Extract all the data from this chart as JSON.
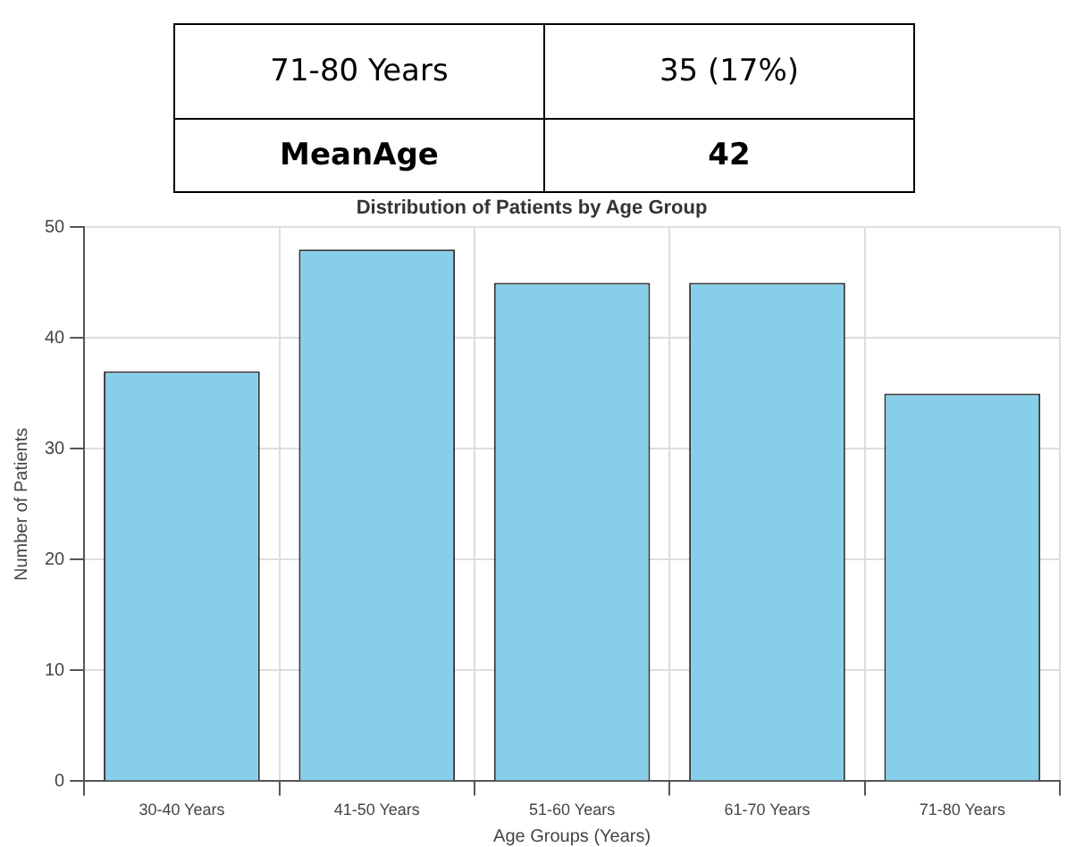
{
  "chart_data": {
    "type": "bar",
    "title": "Distribution of Patients by Age Group",
    "xlabel": "Age Groups (Years)",
    "ylabel": "Number of Patients",
    "categories": [
      "30-40 Years",
      "41-50 Years",
      "51-60 Years",
      "61-70 Years",
      "71-80 Years"
    ],
    "values": [
      37,
      48,
      45,
      45,
      35
    ],
    "color": "#87ceeb",
    "ylim": [
      0,
      50
    ],
    "yticks": [
      0,
      10,
      20,
      30,
      40,
      50
    ],
    "grid": true,
    "annotations": [
      "71-80 Years",
      "35 (17%)",
      "MeanAge",
      "42"
    ]
  }
}
